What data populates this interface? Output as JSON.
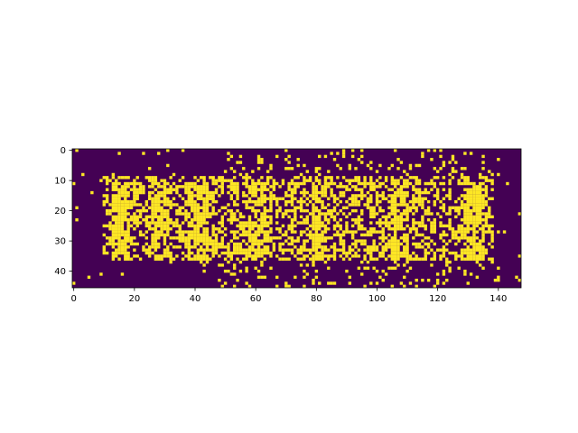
{
  "chart_data": {
    "type": "heatmap",
    "colormap": "viridis",
    "colors": {
      "low": "#440154",
      "high": "#fde725",
      "axis": "#000000",
      "background": "#ffffff"
    },
    "cols": 148,
    "rows": 46,
    "xlim": [
      -0.5,
      147.5
    ],
    "ylim": [
      45.5,
      -0.5
    ],
    "x_ticks": [
      0,
      20,
      40,
      60,
      80,
      100,
      120,
      140
    ],
    "y_ticks": [
      0,
      10,
      20,
      30,
      40
    ],
    "grid": false,
    "title": "",
    "xlabel": "",
    "ylabel": "",
    "pattern": {
      "description": "binary pixel image: dense yellow band of text-like blobs in rows ~8-37, cols ~10-140, sparse speckle elsewhere",
      "core_rows": [
        9,
        36
      ],
      "core_cols": [
        10,
        138
      ],
      "blob_rows": [
        11,
        36
      ],
      "blob_cols": [
        [
          13,
          18
        ],
        [
          26,
          31
        ],
        [
          38,
          44
        ],
        [
          58,
          63
        ],
        [
          79,
          83
        ],
        [
          105,
          110
        ],
        [
          128,
          135
        ]
      ],
      "seed": 12345
    }
  }
}
